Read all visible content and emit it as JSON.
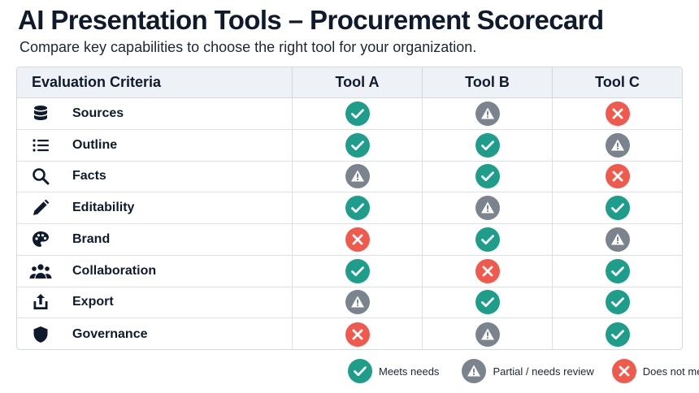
{
  "header": {
    "title": "AI Presentation Tools – Procurement Scorecard",
    "subtitle": "Compare key capabilities to choose the right tool for your organization."
  },
  "table": {
    "criteria_header": "Evaluation Criteria",
    "tools": [
      "Tool A",
      "Tool B",
      "Tool C"
    ],
    "rows": [
      {
        "label": "Sources",
        "icon": "database-icon",
        "ratings": [
          "meets",
          "partial",
          "not"
        ]
      },
      {
        "label": "Outline",
        "icon": "list-icon",
        "ratings": [
          "meets",
          "meets",
          "partial"
        ]
      },
      {
        "label": "Facts",
        "icon": "search-icon",
        "ratings": [
          "partial",
          "meets",
          "not"
        ]
      },
      {
        "label": "Editability",
        "icon": "pencil-icon",
        "ratings": [
          "meets",
          "partial",
          "meets"
        ]
      },
      {
        "label": "Brand",
        "icon": "palette-icon",
        "ratings": [
          "not",
          "meets",
          "partial"
        ]
      },
      {
        "label": "Collaboration",
        "icon": "users-icon",
        "ratings": [
          "meets",
          "not",
          "meets"
        ]
      },
      {
        "label": "Export",
        "icon": "share-export-icon",
        "ratings": [
          "partial",
          "meets",
          "meets"
        ]
      },
      {
        "label": "Governance",
        "icon": "shield-icon",
        "ratings": [
          "not",
          "partial",
          "meets"
        ]
      }
    ]
  },
  "legend": [
    {
      "status": "meets",
      "label": "Meets needs"
    },
    {
      "status": "partial",
      "label": "Partial / needs review"
    },
    {
      "status": "not",
      "label": "Does not meet"
    }
  ],
  "colors": {
    "meets": "#1e9e8a",
    "partial": "#7b838d",
    "not": "#ef5a4c",
    "text": "#0f1b2d"
  }
}
